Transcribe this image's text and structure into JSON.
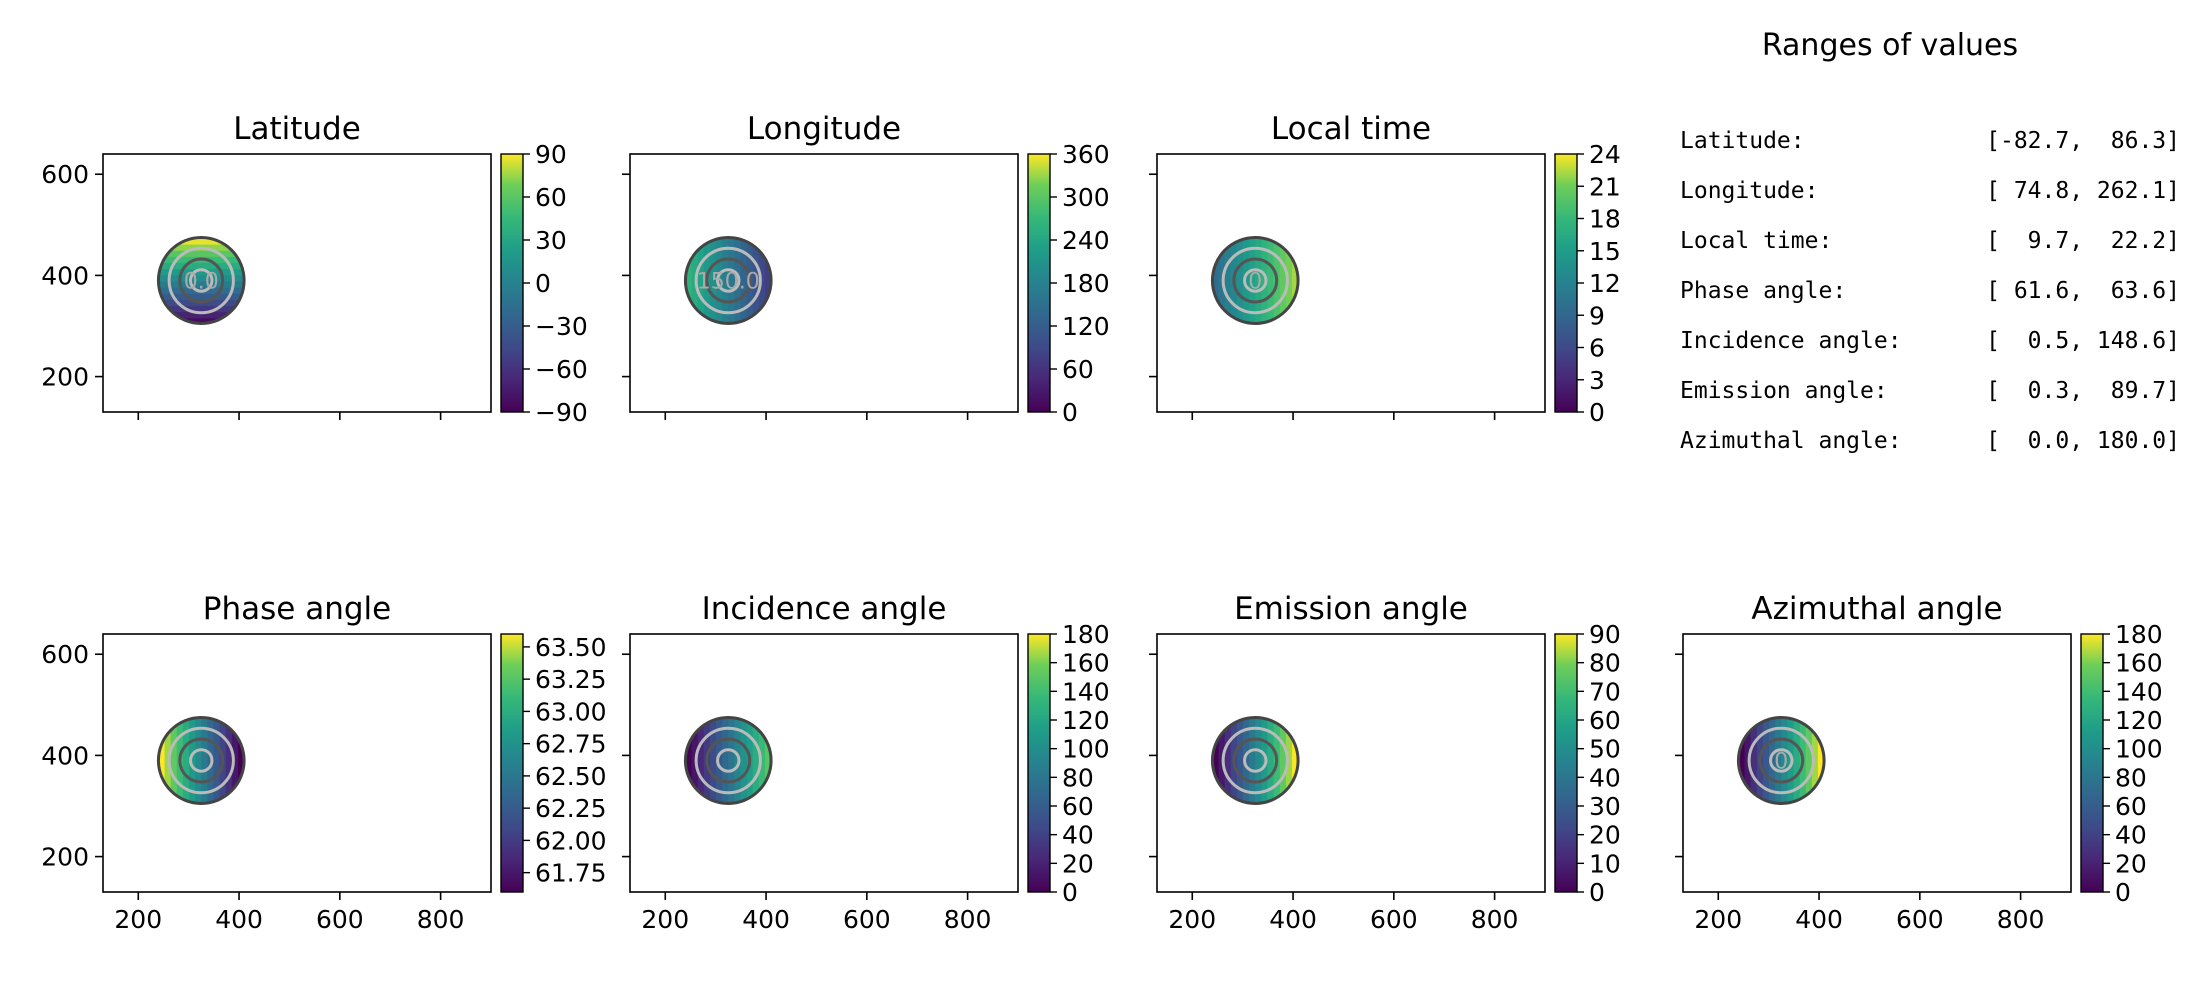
{
  "figure": {
    "ranges_title": "Ranges of values",
    "ranges": [
      {
        "label": "Latitude:",
        "value": "[-82.7,  86.3]"
      },
      {
        "label": "Longitude:",
        "value": "[ 74.8, 262.1]"
      },
      {
        "label": "Local time:",
        "value": "[  9.7,  22.2]"
      },
      {
        "label": "Phase angle:",
        "value": "[ 61.6,  63.6]"
      },
      {
        "label": "Incidence angle:",
        "value": "[  0.5, 148.6]"
      },
      {
        "label": "Emission angle:",
        "value": "[  0.3,  89.7]"
      },
      {
        "label": "Azimuthal angle:",
        "value": "[  0.0, 180.0]"
      }
    ]
  },
  "chart_data": [
    {
      "type": "heatmap",
      "title": "Latitude",
      "xlim": [
        130,
        900
      ],
      "ylim": [
        130,
        640
      ],
      "xticks": [
        200,
        400,
        600,
        800
      ],
      "yticks": [
        200,
        400,
        600
      ],
      "show_xticklabels": false,
      "show_yticklabels": true,
      "disk": {
        "cx": 325,
        "cy": 390,
        "r": 85
      },
      "colorbar": {
        "min": -90,
        "max": 90,
        "ticks": [
          "90",
          "60",
          "30",
          "0",
          "−30",
          "−60",
          "−90"
        ]
      },
      "value_range": [
        -82.7,
        86.3
      ],
      "contour_labels": [
        "0.0"
      ]
    },
    {
      "type": "heatmap",
      "title": "Longitude",
      "xlim": [
        130,
        900
      ],
      "ylim": [
        130,
        640
      ],
      "xticks": [
        200,
        400,
        600,
        800
      ],
      "yticks": [
        200,
        400,
        600
      ],
      "show_xticklabels": false,
      "show_yticklabels": false,
      "disk": {
        "cx": 325,
        "cy": 390,
        "r": 85
      },
      "colorbar": {
        "min": 0,
        "max": 360,
        "ticks": [
          "360",
          "300",
          "240",
          "180",
          "120",
          "60",
          "0"
        ]
      },
      "value_range": [
        74.8,
        262.1
      ],
      "contour_labels": [
        "150.0"
      ]
    },
    {
      "type": "heatmap",
      "title": "Local time",
      "xlim": [
        130,
        900
      ],
      "ylim": [
        130,
        640
      ],
      "xticks": [
        200,
        400,
        600,
        800
      ],
      "yticks": [
        200,
        400,
        600
      ],
      "show_xticklabels": false,
      "show_yticklabels": false,
      "disk": {
        "cx": 325,
        "cy": 390,
        "r": 85
      },
      "colorbar": {
        "min": 0,
        "max": 24,
        "ticks": [
          "24",
          "21",
          "18",
          "15",
          "12",
          "9",
          "6",
          "3",
          "0"
        ]
      },
      "value_range": [
        9.7,
        22.2
      ],
      "contour_labels": [
        "0"
      ]
    },
    {
      "type": "heatmap",
      "title": "Phase angle",
      "xlim": [
        130,
        900
      ],
      "ylim": [
        130,
        640
      ],
      "xticks": [
        200,
        400,
        600,
        800
      ],
      "yticks": [
        200,
        400,
        600
      ],
      "show_xticklabels": true,
      "show_yticklabels": true,
      "disk": {
        "cx": 325,
        "cy": 390,
        "r": 85
      },
      "colorbar": {
        "min": 61.6,
        "max": 63.6,
        "tick_values": [
          63.5,
          63.25,
          63.0,
          62.75,
          62.5,
          62.25,
          62.0,
          61.75
        ],
        "ticks": [
          "63.50",
          "63.25",
          "63.00",
          "62.75",
          "62.50",
          "62.25",
          "62.00",
          "61.75"
        ]
      },
      "value_range": [
        61.6,
        63.6
      ],
      "contour_labels": []
    },
    {
      "type": "heatmap",
      "title": "Incidence angle",
      "xlim": [
        130,
        900
      ],
      "ylim": [
        130,
        640
      ],
      "xticks": [
        200,
        400,
        600,
        800
      ],
      "yticks": [
        200,
        400,
        600
      ],
      "show_xticklabels": true,
      "show_yticklabels": false,
      "disk": {
        "cx": 325,
        "cy": 390,
        "r": 85
      },
      "colorbar": {
        "min": 0,
        "max": 180,
        "ticks": [
          "180",
          "160",
          "140",
          "120",
          "100",
          "80",
          "60",
          "40",
          "20",
          "0"
        ]
      },
      "value_range": [
        0.5,
        148.6
      ],
      "contour_labels": []
    },
    {
      "type": "heatmap",
      "title": "Emission angle",
      "xlim": [
        130,
        900
      ],
      "ylim": [
        130,
        640
      ],
      "xticks": [
        200,
        400,
        600,
        800
      ],
      "yticks": [
        200,
        400,
        600
      ],
      "show_xticklabels": true,
      "show_yticklabels": false,
      "disk": {
        "cx": 325,
        "cy": 390,
        "r": 85
      },
      "colorbar": {
        "min": 0,
        "max": 90,
        "ticks": [
          "90",
          "80",
          "70",
          "60",
          "50",
          "40",
          "30",
          "20",
          "10",
          "0"
        ]
      },
      "value_range": [
        0.3,
        89.7
      ],
      "contour_labels": []
    },
    {
      "type": "heatmap",
      "title": "Azimuthal angle",
      "xlim": [
        130,
        900
      ],
      "ylim": [
        130,
        640
      ],
      "xticks": [
        200,
        400,
        600,
        800
      ],
      "yticks": [
        200,
        400,
        600
      ],
      "show_xticklabels": true,
      "show_yticklabels": false,
      "disk": {
        "cx": 325,
        "cy": 390,
        "r": 85
      },
      "colorbar": {
        "min": 0,
        "max": 180,
        "ticks": [
          "180",
          "160",
          "140",
          "120",
          "100",
          "80",
          "60",
          "40",
          "20",
          "0"
        ]
      },
      "value_range": [
        0.0,
        180.0
      ],
      "contour_labels": [
        "0"
      ]
    }
  ]
}
